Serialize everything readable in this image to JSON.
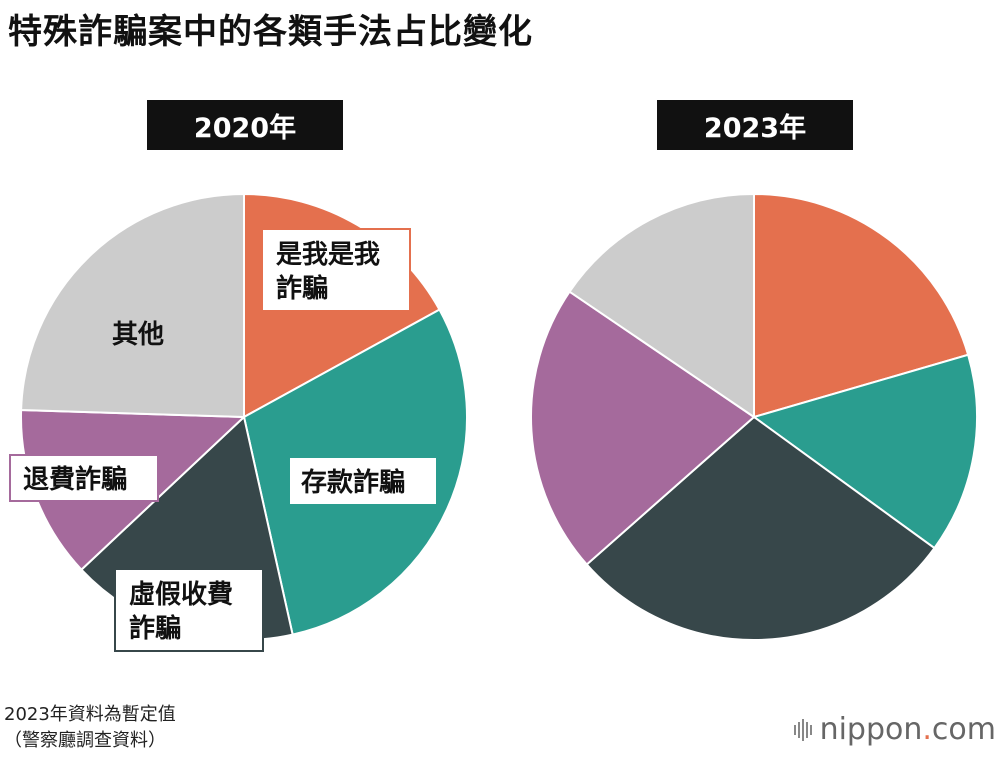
{
  "title": "特殊詐騙案中的各類手法占比變化",
  "note_line1": "2023年資料為暫定值",
  "note_line2": "（警察廳調查資料）",
  "brand": {
    "name": "nippon",
    "dot": ".",
    "suffix": "com"
  },
  "colors": {
    "orange": "#e4704e",
    "teal": "#2a9d8f",
    "dark": "#37474a",
    "purple": "#a56a9c",
    "gray": "#cccccc"
  },
  "chart_data": [
    {
      "type": "pie",
      "title": "2020年",
      "slices": [
        {
          "label": "是我是我詐騙",
          "value": 17.0,
          "color": "#e4704e"
        },
        {
          "label": "存款詐騙",
          "value": 29.5,
          "color": "#2a9d8f"
        },
        {
          "label": "虛假收費詐騙",
          "value": 16.5,
          "color": "#37474a"
        },
        {
          "label": "退費詐騙",
          "value": 12.5,
          "color": "#a56a9c"
        },
        {
          "label": "其他",
          "value": 24.5,
          "color": "#cccccc"
        }
      ]
    },
    {
      "type": "pie",
      "title": "2023年",
      "slices": [
        {
          "label": "是我是我詐騙",
          "value": 20.5,
          "color": "#e4704e"
        },
        {
          "label": "存款詐騙",
          "value": 14.5,
          "color": "#2a9d8f"
        },
        {
          "label": "虛假收費詐騙",
          "value": 28.5,
          "color": "#37474a"
        },
        {
          "label": "退費詐騙",
          "value": 21.0,
          "color": "#a56a9c"
        },
        {
          "label": "其他",
          "value": 15.5,
          "color": "#cccccc"
        }
      ]
    }
  ],
  "labels": {
    "oreore_line1": "是我是我",
    "oreore_line2": "詐騙",
    "deposit": "存款詐騙",
    "fake_line1": "虛假收費",
    "fake_line2": "詐騙",
    "refund": "退費詐騙",
    "other": "其他"
  }
}
